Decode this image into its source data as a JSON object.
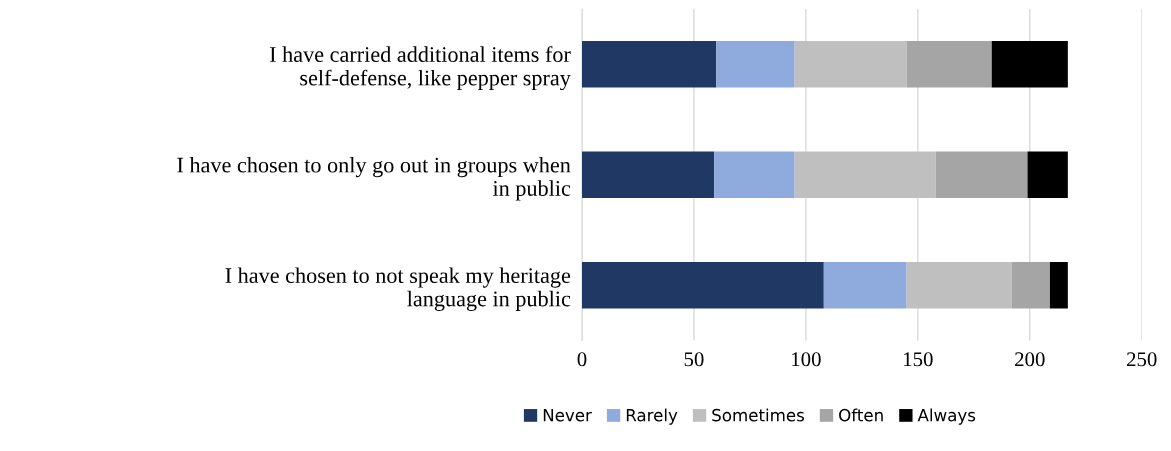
{
  "chart_data": {
    "type": "bar",
    "orientation": "horizontal",
    "stacked": true,
    "categories": [
      "I have carried additional items for self-defense, like pepper spray",
      "I have chosen to only go out in groups when in public",
      "I have chosen to not speak my heritage language in public"
    ],
    "series": [
      {
        "name": "Never",
        "color": "#203864",
        "values": [
          60,
          59,
          108
        ]
      },
      {
        "name": "Rarely",
        "color": "#8faadc",
        "values": [
          35,
          36,
          37
        ]
      },
      {
        "name": "Sometimes",
        "color": "#bfbfbf",
        "values": [
          50,
          63,
          47
        ]
      },
      {
        "name": "Often",
        "color": "#a5a5a5",
        "values": [
          38,
          41,
          17
        ]
      },
      {
        "name": "Always",
        "color": "#000000",
        "values": [
          34,
          18,
          8
        ]
      }
    ],
    "xlim": [
      0,
      250
    ],
    "xticks": [
      0,
      50,
      100,
      150,
      200,
      250
    ],
    "grid": "x",
    "legend": "bottom"
  }
}
